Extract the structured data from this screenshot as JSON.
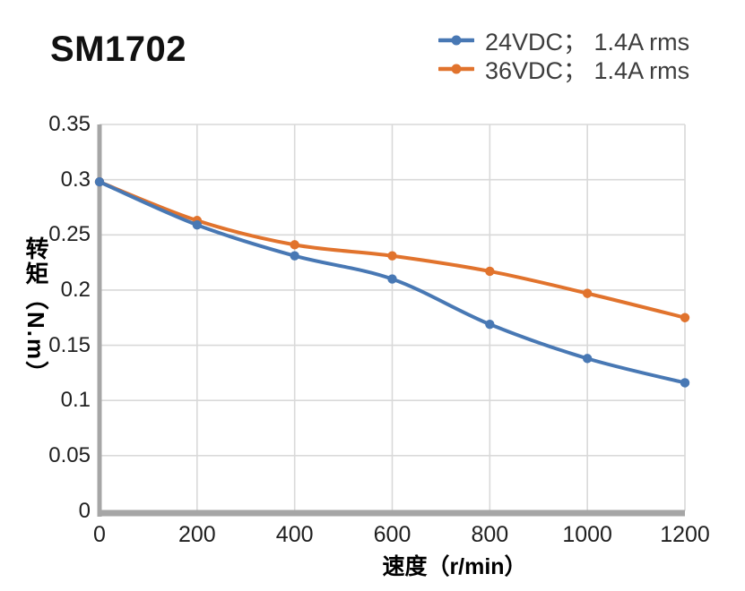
{
  "title": "SM1702",
  "legend": {
    "items": [
      {
        "label": "24VDC； 1.4A rms",
        "color": "#4878B4"
      },
      {
        "label": "36VDC； 1.4A rms",
        "color": "#E1732D"
      }
    ]
  },
  "chart_data": {
    "type": "line",
    "title": "SM1702",
    "x": [
      0,
      200,
      400,
      600,
      800,
      1000,
      1200
    ],
    "series": [
      {
        "name": "24VDC； 1.4A rms",
        "color": "#4878B4",
        "values": [
          0.298,
          0.259,
          0.231,
          0.21,
          0.169,
          0.138,
          0.116
        ]
      },
      {
        "name": "36VDC； 1.4A rms",
        "color": "#E1732D",
        "values": [
          0.298,
          0.263,
          0.241,
          0.231,
          0.217,
          0.197,
          0.175
        ]
      }
    ],
    "xlabel": "速度（r/min）",
    "ylabel": "转矩（N.m）",
    "xlim": [
      0,
      1200
    ],
    "ylim": [
      0,
      0.35
    ],
    "x_ticks": [
      "0",
      "200",
      "400",
      "600",
      "800",
      "1000",
      "1200"
    ],
    "y_ticks": [
      "0",
      "0.05",
      "0.1",
      "0.15",
      "0.2",
      "0.25",
      "0.3",
      "0.35"
    ],
    "grid": true,
    "smooth_lines": true,
    "legend_position": "top-right",
    "colors": {
      "grid": "#D9D9D9",
      "axis": "#A6A6A6",
      "tick_text": "#1F1F1F"
    }
  }
}
